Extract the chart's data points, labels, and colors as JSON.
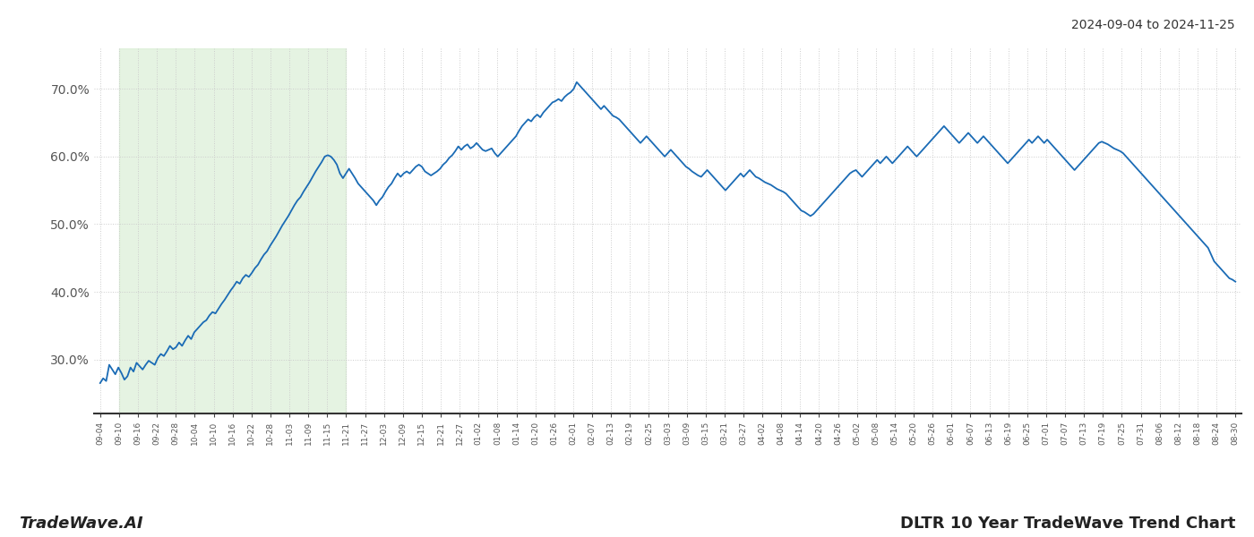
{
  "title_right": "2024-09-04 to 2024-11-25",
  "title_bottom_left": "TradeWave.AI",
  "title_bottom_right": "DLTR 10 Year TradeWave Trend Chart",
  "line_color": "#1a6bb5",
  "line_width": 1.3,
  "shade_color": "#d4ecd0",
  "shade_alpha": 0.6,
  "background_color": "#ffffff",
  "grid_color": "#cccccc",
  "grid_linestyle": ":",
  "ylim": [
    22,
    76
  ],
  "yticks": [
    30.0,
    40.0,
    50.0,
    60.0,
    70.0
  ],
  "x_labels": [
    "09-04",
    "09-10",
    "09-16",
    "09-22",
    "09-28",
    "10-04",
    "10-10",
    "10-16",
    "10-22",
    "10-28",
    "11-03",
    "11-09",
    "11-15",
    "11-21",
    "11-27",
    "12-03",
    "12-09",
    "12-15",
    "12-21",
    "12-27",
    "01-02",
    "01-08",
    "01-14",
    "01-20",
    "01-26",
    "02-01",
    "02-07",
    "02-13",
    "02-19",
    "02-25",
    "03-03",
    "03-09",
    "03-15",
    "03-21",
    "03-27",
    "04-02",
    "04-08",
    "04-14",
    "04-20",
    "04-26",
    "05-02",
    "05-08",
    "05-14",
    "05-20",
    "05-26",
    "06-01",
    "06-07",
    "06-13",
    "06-19",
    "06-25",
    "07-01",
    "07-07",
    "07-13",
    "07-19",
    "07-25",
    "07-31",
    "08-06",
    "08-12",
    "08-18",
    "08-24",
    "08-30"
  ],
  "shade_label_start": "09-10",
  "shade_label_end": "11-21",
  "values": [
    26.5,
    27.2,
    26.8,
    29.2,
    28.5,
    27.8,
    28.8,
    28.0,
    27.0,
    27.5,
    28.8,
    28.2,
    29.5,
    29.0,
    28.5,
    29.2,
    29.8,
    29.5,
    29.2,
    30.2,
    30.8,
    30.5,
    31.2,
    32.0,
    31.5,
    31.8,
    32.5,
    32.0,
    32.8,
    33.5,
    33.0,
    34.0,
    34.5,
    35.0,
    35.5,
    35.8,
    36.5,
    37.0,
    36.8,
    37.5,
    38.2,
    38.8,
    39.5,
    40.2,
    40.8,
    41.5,
    41.2,
    42.0,
    42.5,
    42.2,
    42.8,
    43.5,
    44.0,
    44.8,
    45.5,
    46.0,
    46.8,
    47.5,
    48.2,
    49.0,
    49.8,
    50.5,
    51.2,
    52.0,
    52.8,
    53.5,
    54.0,
    54.8,
    55.5,
    56.2,
    57.0,
    57.8,
    58.5,
    59.2,
    60.0,
    60.2,
    60.0,
    59.5,
    58.8,
    57.5,
    56.8,
    57.5,
    58.2,
    57.5,
    56.8,
    56.0,
    55.5,
    55.0,
    54.5,
    54.0,
    53.5,
    52.8,
    53.5,
    54.0,
    54.8,
    55.5,
    56.0,
    56.8,
    57.5,
    57.0,
    57.5,
    57.8,
    57.5,
    58.0,
    58.5,
    58.8,
    58.5,
    57.8,
    57.5,
    57.2,
    57.5,
    57.8,
    58.2,
    58.8,
    59.2,
    59.8,
    60.2,
    60.8,
    61.5,
    61.0,
    61.5,
    61.8,
    61.2,
    61.5,
    62.0,
    61.5,
    61.0,
    60.8,
    61.0,
    61.2,
    60.5,
    60.0,
    60.5,
    61.0,
    61.5,
    62.0,
    62.5,
    63.0,
    63.8,
    64.5,
    65.0,
    65.5,
    65.2,
    65.8,
    66.2,
    65.8,
    66.5,
    67.0,
    67.5,
    68.0,
    68.2,
    68.5,
    68.2,
    68.8,
    69.2,
    69.5,
    70.0,
    71.0,
    70.5,
    70.0,
    69.5,
    69.0,
    68.5,
    68.0,
    67.5,
    67.0,
    67.5,
    67.0,
    66.5,
    66.0,
    65.8,
    65.5,
    65.0,
    64.5,
    64.0,
    63.5,
    63.0,
    62.5,
    62.0,
    62.5,
    63.0,
    62.5,
    62.0,
    61.5,
    61.0,
    60.5,
    60.0,
    60.5,
    61.0,
    60.5,
    60.0,
    59.5,
    59.0,
    58.5,
    58.2,
    57.8,
    57.5,
    57.2,
    57.0,
    57.5,
    58.0,
    57.5,
    57.0,
    56.5,
    56.0,
    55.5,
    55.0,
    55.5,
    56.0,
    56.5,
    57.0,
    57.5,
    57.0,
    57.5,
    58.0,
    57.5,
    57.0,
    56.8,
    56.5,
    56.2,
    56.0,
    55.8,
    55.5,
    55.2,
    55.0,
    54.8,
    54.5,
    54.0,
    53.5,
    53.0,
    52.5,
    52.0,
    51.8,
    51.5,
    51.2,
    51.5,
    52.0,
    52.5,
    53.0,
    53.5,
    54.0,
    54.5,
    55.0,
    55.5,
    56.0,
    56.5,
    57.0,
    57.5,
    57.8,
    58.0,
    57.5,
    57.0,
    57.5,
    58.0,
    58.5,
    59.0,
    59.5,
    59.0,
    59.5,
    60.0,
    59.5,
    59.0,
    59.5,
    60.0,
    60.5,
    61.0,
    61.5,
    61.0,
    60.5,
    60.0,
    60.5,
    61.0,
    61.5,
    62.0,
    62.5,
    63.0,
    63.5,
    64.0,
    64.5,
    64.0,
    63.5,
    63.0,
    62.5,
    62.0,
    62.5,
    63.0,
    63.5,
    63.0,
    62.5,
    62.0,
    62.5,
    63.0,
    62.5,
    62.0,
    61.5,
    61.0,
    60.5,
    60.0,
    59.5,
    59.0,
    59.5,
    60.0,
    60.5,
    61.0,
    61.5,
    62.0,
    62.5,
    62.0,
    62.5,
    63.0,
    62.5,
    62.0,
    62.5,
    62.0,
    61.5,
    61.0,
    60.5,
    60.0,
    59.5,
    59.0,
    58.5,
    58.0,
    58.5,
    59.0,
    59.5,
    60.0,
    60.5,
    61.0,
    61.5,
    62.0,
    62.2,
    62.0,
    61.8,
    61.5,
    61.2,
    61.0,
    60.8,
    60.5,
    60.0,
    59.5,
    59.0,
    58.5,
    58.0,
    57.5,
    57.0,
    56.5,
    56.0,
    55.5,
    55.0,
    54.5,
    54.0,
    53.5,
    53.0,
    52.5,
    52.0,
    51.5,
    51.0,
    50.5,
    50.0,
    49.5,
    49.0,
    48.5,
    48.0,
    47.5,
    47.0,
    46.5,
    45.5,
    44.5,
    44.0,
    43.5,
    43.0,
    42.5,
    42.0,
    41.8,
    41.5
  ]
}
